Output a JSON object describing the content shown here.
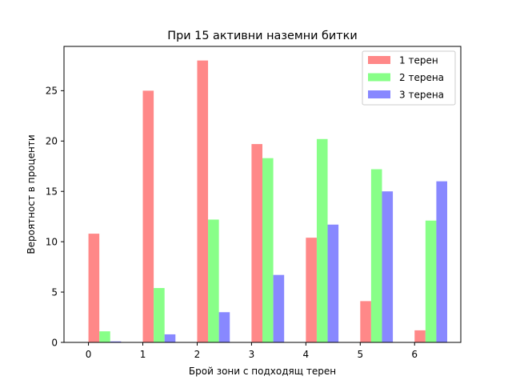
{
  "chart_data": {
    "type": "bar",
    "title": "При 15 активни наземни битки",
    "xlabel": "Брой зони с подходящ терен",
    "ylabel": "Вероятност в проценти",
    "categories": [
      "0",
      "1",
      "2",
      "3",
      "4",
      "5",
      "6"
    ],
    "x": [
      0,
      1,
      2,
      3,
      4,
      5,
      6
    ],
    "xlim": [
      -0.45,
      6.85
    ],
    "ylim": [
      0,
      29.4
    ],
    "yticks": [
      0,
      5,
      10,
      15,
      20,
      25
    ],
    "grid": false,
    "legend_position": "top-right",
    "series": [
      {
        "name": "1 терен",
        "color": "#ff8888",
        "values": [
          10.8,
          25.0,
          28.0,
          19.7,
          10.4,
          4.1,
          1.2
        ]
      },
      {
        "name": "2 терена",
        "color": "#88ff88",
        "values": [
          1.1,
          5.4,
          12.2,
          18.3,
          20.2,
          17.2,
          12.1
        ]
      },
      {
        "name": "3 терена",
        "color": "#8888ff",
        "values": [
          0.1,
          0.8,
          3.0,
          6.7,
          11.7,
          15.0,
          16.0
        ]
      }
    ]
  }
}
